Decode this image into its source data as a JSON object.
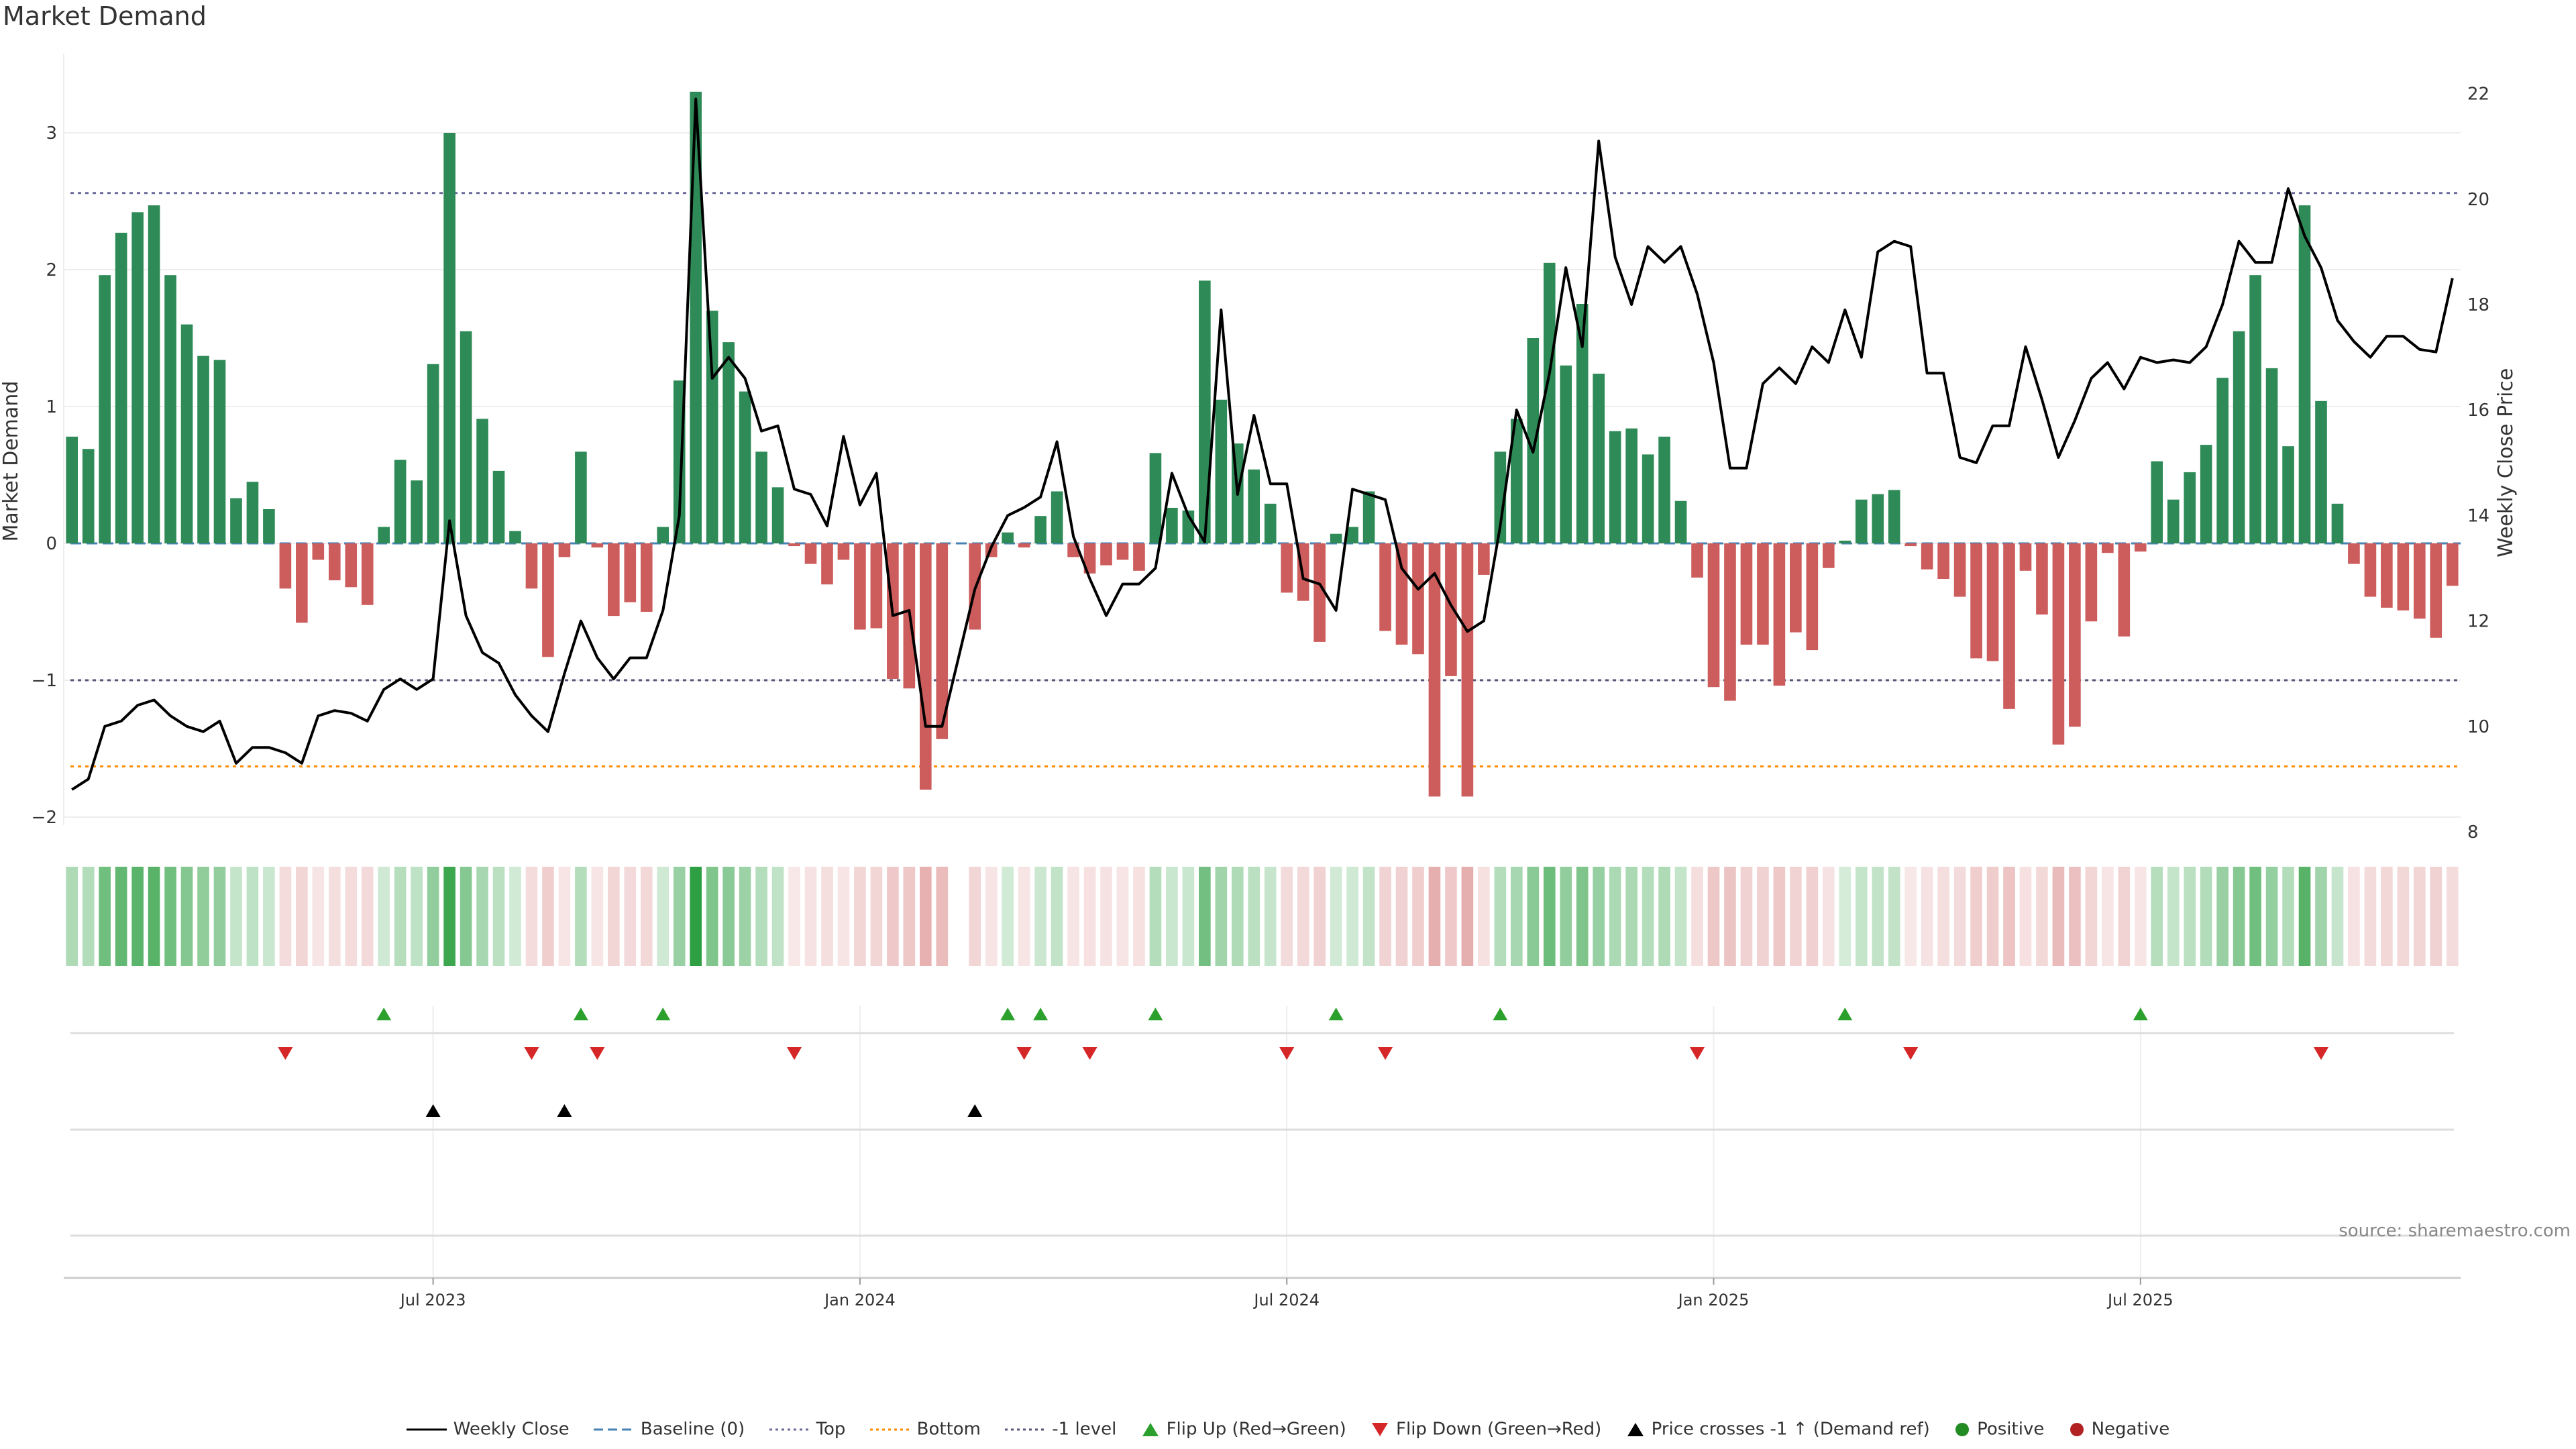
{
  "title": "Market Demand",
  "source": "source: sharemaestro.com",
  "chart_data": {
    "type": "bar",
    "title": "Market Demand",
    "ylabel": "Market Demand",
    "y2label": "Weekly Close Price",
    "ylim": [
      -2,
      3.3
    ],
    "y2lim": [
      8,
      22
    ],
    "yticks": [
      -2,
      -1,
      0,
      1,
      2,
      3
    ],
    "y2ticks": [
      8,
      10,
      12,
      14,
      16,
      18,
      20,
      22
    ],
    "x_ticks": [
      {
        "index": 22,
        "label": "Jul 2023"
      },
      {
        "index": 48,
        "label": "Jan 2024"
      },
      {
        "index": 74,
        "label": "Jul 2024"
      },
      {
        "index": 100,
        "label": "Jan 2025"
      },
      {
        "index": 126,
        "label": "Jul 2025"
      }
    ],
    "reference_lines": {
      "top": 2.56,
      "bottom": -1.63,
      "minus_one": -1,
      "baseline": 0
    },
    "demand": [
      0.78,
      0.69,
      1.96,
      2.27,
      2.42,
      2.47,
      1.96,
      1.6,
      1.37,
      1.34,
      0.33,
      0.45,
      0.25,
      -0.33,
      -0.58,
      -0.12,
      -0.27,
      -0.32,
      -0.45,
      0.12,
      0.61,
      0.46,
      1.31,
      3.0,
      1.55,
      0.91,
      0.53,
      0.09,
      -0.33,
      -0.83,
      -0.1,
      0.67,
      -0.03,
      -0.53,
      -0.43,
      -0.5,
      0.12,
      1.19,
      3.3,
      1.7,
      1.47,
      1.11,
      0.67,
      0.41,
      -0.02,
      -0.15,
      -0.3,
      -0.12,
      -0.63,
      -0.62,
      -0.99,
      -1.06,
      -1.8,
      -1.43,
      0.0,
      -0.63,
      -0.1,
      0.08,
      -0.03,
      0.2,
      0.38,
      -0.1,
      -0.22,
      -0.16,
      -0.12,
      -0.2,
      0.66,
      0.26,
      0.24,
      1.92,
      1.05,
      0.73,
      0.54,
      0.29,
      -0.36,
      -0.42,
      -0.72,
      0.07,
      0.12,
      0.38,
      -0.64,
      -0.74,
      -0.81,
      -1.85,
      -0.97,
      -1.85,
      -0.23,
      0.67,
      0.91,
      1.5,
      2.05,
      1.3,
      1.75,
      1.24,
      0.82,
      0.84,
      0.65,
      0.78,
      0.31,
      -0.25,
      -1.05,
      -1.15,
      -0.74,
      -0.74,
      -1.04,
      -0.65,
      -0.78,
      -0.18,
      0.02,
      0.32,
      0.36,
      0.39,
      -0.02,
      -0.19,
      -0.26,
      -0.39,
      -0.84,
      -0.86,
      -1.21,
      -0.2,
      -0.52,
      -1.47,
      -1.34,
      -0.57,
      -0.07,
      -0.68,
      -0.06,
      0.6,
      0.32,
      0.52,
      0.72,
      1.21,
      1.55,
      1.96,
      1.28,
      0.71,
      2.47,
      1.04,
      0.29,
      -0.15,
      -0.39,
      -0.47,
      -0.49,
      -0.55,
      -0.69,
      -0.31
    ],
    "weekly_close": [
      8.8,
      9.0,
      10.0,
      10.1,
      10.4,
      10.5,
      10.2,
      10.0,
      9.9,
      10.1,
      9.3,
      9.6,
      9.6,
      9.5,
      9.3,
      10.2,
      10.3,
      10.25,
      10.1,
      10.7,
      10.9,
      10.7,
      10.9,
      13.9,
      12.1,
      11.4,
      11.2,
      10.6,
      10.2,
      9.9,
      11.0,
      12.0,
      11.3,
      10.9,
      11.3,
      11.3,
      12.2,
      14.0,
      21.9,
      16.6,
      17.0,
      16.6,
      15.6,
      15.7,
      14.5,
      14.4,
      13.8,
      15.5,
      14.2,
      14.8,
      12.1,
      12.2,
      10.0,
      10.0,
      11.3,
      12.6,
      13.4,
      14.0,
      14.15,
      14.35,
      15.4,
      13.6,
      12.8,
      12.1,
      12.7,
      12.7,
      13.0,
      14.8,
      14.0,
      13.5,
      17.9,
      14.4,
      15.9,
      14.6,
      14.6,
      12.8,
      12.7,
      12.2,
      14.5,
      14.4,
      14.3,
      13.0,
      12.6,
      12.9,
      12.3,
      11.8,
      12.0,
      13.8,
      16.0,
      15.2,
      16.7,
      18.7,
      17.2,
      21.1,
      18.9,
      18.0,
      19.1,
      18.8,
      19.1,
      18.2,
      16.9,
      14.9,
      14.9,
      16.5,
      16.8,
      16.5,
      17.2,
      16.9,
      17.9,
      17.0,
      19.0,
      19.2,
      19.1,
      16.7,
      16.7,
      15.1,
      15.0,
      15.7,
      15.7,
      17.2,
      16.2,
      15.1,
      15.8,
      16.6,
      16.9,
      16.4,
      17.0,
      16.9,
      16.95,
      16.9,
      17.2,
      18.0,
      19.2,
      18.8,
      18.8,
      20.2,
      19.3,
      18.7,
      17.7,
      17.3,
      17.0,
      17.4,
      17.4,
      17.15,
      17.1,
      18.5
    ],
    "flip_up_indices": [
      19,
      31,
      36,
      57,
      59,
      66,
      77,
      87,
      108,
      126
    ],
    "flip_down_indices": [
      13,
      28,
      32,
      44,
      58,
      62,
      74,
      80,
      99,
      112,
      137
    ],
    "price_cross_indices": [
      22,
      30,
      55
    ],
    "legend": [
      "Weekly Close",
      "Baseline (0)",
      "Top",
      "Bottom",
      "-1 level",
      "Flip Up (Red→Green)",
      "Flip Down (Green→Red)",
      "Price crosses -1 ↑ (Demand ref)",
      "Positive",
      "Negative"
    ]
  },
  "colors": {
    "positive_bar": "#2e8b57",
    "negative_bar": "#cd5c5c",
    "price_line": "#000000",
    "baseline": "#4682b4",
    "top_line": "#6a6a9a",
    "bottom_line": "#ff8c00",
    "minus_one_line": "#555577",
    "flip_up": "#2ca02c",
    "flip_down": "#d62728",
    "price_cross": "#000000",
    "positive_dot": "#228b22",
    "negative_dot": "#b22222"
  }
}
